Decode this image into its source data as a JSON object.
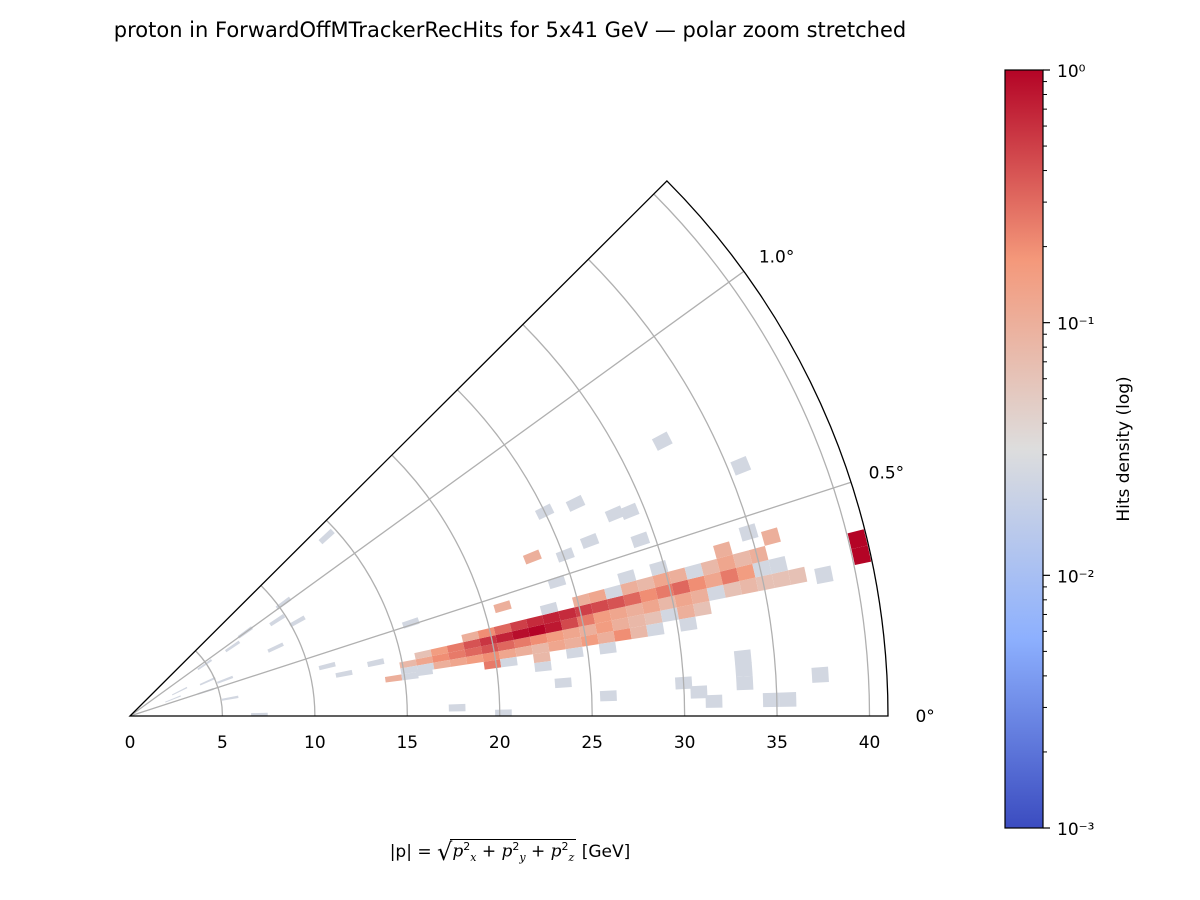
{
  "chart_data": {
    "type": "heatmap",
    "projection": "polar-wedge",
    "title": "proton in ForwardOffMTrackerRecHits for 5x41 GeV — polar zoom stretched",
    "xlabel": {
      "prefix": "|p| = ",
      "base": "p",
      "components": [
        "x",
        "y",
        "z"
      ],
      "exp": "2",
      "suffix": " [GeV]"
    },
    "r_range": [
      0,
      41
    ],
    "r_ticks": [
      "0",
      "5",
      "10",
      "15",
      "20",
      "25",
      "30",
      "35",
      "40"
    ],
    "theta_range_deg": [
      0,
      1.25
    ],
    "theta_ticks": [
      {
        "value": 0,
        "label": "0°"
      },
      {
        "value": 0.5,
        "label": "0.5°"
      },
      {
        "value": 1.0,
        "label": "1.0°"
      }
    ],
    "grid": true,
    "bin_size": {
      "r": 0.9,
      "theta": 0.035
    },
    "colorbar": {
      "label": "Hits density (log)",
      "scale": "log",
      "range": [
        0.001,
        1
      ],
      "colormap": "coolwarm",
      "tick_labels": [
        {
          "log": 0,
          "label": "10⁰"
        },
        {
          "log": -1,
          "label": "10⁻¹"
        },
        {
          "log": -2,
          "label": "10⁻²"
        },
        {
          "log": -3,
          "label": "10⁻³"
        }
      ]
    },
    "cells_format": [
      "r_GeV",
      "theta_deg",
      "log10_density"
    ],
    "cells": [
      [
        15.3,
        0.295,
        -1.1
      ],
      [
        16.2,
        0.295,
        -0.9
      ],
      [
        17.1,
        0.295,
        -0.7
      ],
      [
        18.0,
        0.295,
        -0.6
      ],
      [
        18.9,
        0.295,
        -0.5
      ],
      [
        19.8,
        0.295,
        -0.4
      ],
      [
        20.7,
        0.295,
        -0.5
      ],
      [
        21.6,
        0.295,
        -0.6
      ],
      [
        22.5,
        0.295,
        -0.7
      ],
      [
        23.4,
        0.295,
        -0.8
      ],
      [
        24.3,
        0.295,
        -0.9
      ],
      [
        25.2,
        0.295,
        -1.0
      ],
      [
        26.1,
        0.295,
        -0.8
      ],
      [
        27.0,
        0.295,
        -1.0
      ],
      [
        27.9,
        0.295,
        -1.1
      ],
      [
        28.8,
        0.295,
        -1.2
      ],
      [
        29.7,
        0.295,
        -1.6
      ],
      [
        30.6,
        0.295,
        -1.0
      ],
      [
        31.5,
        0.295,
        -1.2
      ],
      [
        16.2,
        0.33,
        -1.2
      ],
      [
        17.1,
        0.33,
        -0.8
      ],
      [
        18.0,
        0.33,
        -0.6
      ],
      [
        18.9,
        0.33,
        -0.4
      ],
      [
        19.8,
        0.33,
        -0.25
      ],
      [
        20.7,
        0.33,
        -0.15
      ],
      [
        21.6,
        0.33,
        -0.05
      ],
      [
        22.5,
        0.33,
        0
      ],
      [
        23.4,
        0.33,
        -0.1
      ],
      [
        24.3,
        0.33,
        -0.35
      ],
      [
        25.2,
        0.33,
        -0.6
      ],
      [
        26.1,
        0.33,
        -0.8
      ],
      [
        27.0,
        0.33,
        -0.9
      ],
      [
        27.9,
        0.33,
        -1.0
      ],
      [
        28.8,
        0.33,
        -0.9
      ],
      [
        29.7,
        0.33,
        -1.1
      ],
      [
        30.6,
        0.33,
        -0.9
      ],
      [
        31.5,
        0.33,
        -1.0
      ],
      [
        32.4,
        0.33,
        -1.6
      ],
      [
        33.3,
        0.33,
        -1.2
      ],
      [
        34.2,
        0.33,
        -1.1
      ],
      [
        35.1,
        0.33,
        -1.2
      ],
      [
        36.0,
        0.33,
        -1.2
      ],
      [
        36.9,
        0.33,
        -1.2
      ],
      [
        18.9,
        0.365,
        -1.0
      ],
      [
        19.8,
        0.365,
        -0.7
      ],
      [
        20.7,
        0.365,
        -0.5
      ],
      [
        21.6,
        0.365,
        -0.3
      ],
      [
        22.5,
        0.365,
        -0.2
      ],
      [
        23.4,
        0.365,
        -0.15
      ],
      [
        24.3,
        0.365,
        -0.2
      ],
      [
        25.2,
        0.365,
        -0.3
      ],
      [
        26.1,
        0.365,
        -0.35
      ],
      [
        27.0,
        0.365,
        -0.4
      ],
      [
        27.9,
        0.365,
        -0.5
      ],
      [
        28.8,
        0.365,
        -0.7
      ],
      [
        29.7,
        0.365,
        -0.6
      ],
      [
        30.6,
        0.365,
        -0.5
      ],
      [
        31.5,
        0.365,
        -0.7
      ],
      [
        32.4,
        0.365,
        -0.9
      ],
      [
        33.3,
        0.365,
        -0.6
      ],
      [
        34.2,
        0.365,
        -0.8
      ],
      [
        35.1,
        0.365,
        -1.6
      ],
      [
        36.0,
        0.365,
        -1.6
      ],
      [
        15.3,
        0.26,
        -1.6
      ],
      [
        16.2,
        0.26,
        -1.6
      ],
      [
        17.1,
        0.26,
        -1.0
      ],
      [
        18.0,
        0.26,
        -0.9
      ],
      [
        18.9,
        0.26,
        -0.8
      ],
      [
        19.8,
        0.26,
        -0.7
      ],
      [
        20.7,
        0.26,
        -0.9
      ],
      [
        21.6,
        0.26,
        -1.0
      ],
      [
        22.5,
        0.26,
        -1.1
      ],
      [
        23.4,
        0.26,
        -0.9
      ],
      [
        24.3,
        0.26,
        -1.0
      ],
      [
        25.2,
        0.26,
        -0.8
      ],
      [
        26.1,
        0.26,
        -1.0
      ],
      [
        27.0,
        0.26,
        -0.7
      ],
      [
        27.9,
        0.26,
        -1.1
      ],
      [
        28.8,
        0.26,
        -1.6
      ],
      [
        30.6,
        0.26,
        -1.6
      ],
      [
        23.4,
        0.4,
        -1.6
      ],
      [
        25.2,
        0.4,
        -1.0
      ],
      [
        26.1,
        0.4,
        -0.9
      ],
      [
        27.0,
        0.4,
        -1.6
      ],
      [
        27.9,
        0.4,
        -1.0
      ],
      [
        28.8,
        0.4,
        -1.1
      ],
      [
        29.7,
        0.4,
        -0.9
      ],
      [
        30.6,
        0.4,
        -1.0
      ],
      [
        31.5,
        0.4,
        -1.6
      ],
      [
        32.4,
        0.4,
        -1.1
      ],
      [
        33.3,
        0.4,
        -0.9
      ],
      [
        34.2,
        0.4,
        -1.1
      ],
      [
        35.1,
        0.4,
        -1.0
      ],
      [
        14.4,
        0.225,
        -1.0
      ],
      [
        15.3,
        0.225,
        -1.6
      ],
      [
        19.8,
        0.225,
        -0.6
      ],
      [
        20.7,
        0.225,
        -1.6
      ],
      [
        22.5,
        0.225,
        -1.1
      ],
      [
        24.3,
        0.225,
        -1.6
      ],
      [
        26.1,
        0.225,
        -1.6
      ],
      [
        27.9,
        0.435,
        -1.6
      ],
      [
        29.7,
        0.435,
        -1.6
      ],
      [
        33.3,
        0.435,
        -1.0
      ],
      [
        36.0,
        0.435,
        -1.0
      ],
      [
        40.5,
        0.345,
        0
      ],
      [
        40.5,
        0.38,
        0
      ],
      [
        32.4,
        0.76,
        -1.6
      ],
      [
        35.7,
        0.62,
        -1.6
      ],
      [
        26.7,
        0.71,
        -1.6
      ],
      [
        25.0,
        0.73,
        -1.6
      ],
      [
        28.4,
        0.63,
        -1.6
      ],
      [
        29.2,
        0.62,
        -1.6
      ],
      [
        26.6,
        0.58,
        -1.6
      ],
      [
        29.2,
        0.53,
        -1.6
      ],
      [
        25.1,
        0.565,
        -1.6
      ],
      [
        34.9,
        0.46,
        -1.6
      ],
      [
        23.4,
        0.6,
        -1.0
      ],
      [
        21.0,
        0.455,
        -1.0
      ],
      [
        24.2,
        0.485,
        -1.6
      ],
      [
        16.0,
        0.51,
        -1.6
      ],
      [
        38.3,
        0.32,
        -1.6
      ],
      [
        33.3,
        0.153,
        -1.6
      ],
      [
        33.3,
        0.085,
        -1.6
      ],
      [
        33.3,
        0.12,
        -1.6
      ],
      [
        37.4,
        0.095,
        -1.6
      ],
      [
        35.6,
        0.04,
        -1.6
      ],
      [
        34.7,
        0.04,
        -1.6
      ],
      [
        31.6,
        0.04,
        -1.6
      ],
      [
        30.8,
        0.067,
        -1.6
      ],
      [
        30.0,
        0.095,
        -1.6
      ],
      [
        25.9,
        0.067,
        -1.6
      ],
      [
        23.5,
        0.122,
        -1.6
      ],
      [
        22.5,
        0.19,
        -1.6
      ],
      [
        20.2,
        0.01,
        -1.6
      ],
      [
        17.7,
        0.04,
        -1.6
      ],
      [
        16.1,
        0.237,
        -1.6
      ],
      [
        13.6,
        0.34,
        -1.6
      ],
      [
        11.8,
        0.31,
        -1.6
      ],
      [
        11.0,
        0.395,
        -1.6
      ],
      [
        14.4,
        1.18,
        -1.6
      ],
      [
        10.3,
        1.01,
        -1.6
      ],
      [
        9.5,
        0.92,
        -1.6
      ],
      [
        10.4,
        0.82,
        -1.6
      ],
      [
        8.7,
        0.7,
        -1.6
      ],
      [
        7.7,
        1.0,
        -1.6
      ],
      [
        6.7,
        0.95,
        -1.6
      ],
      [
        5.5,
        0.58,
        -1.6
      ],
      [
        4.6,
        0.67,
        -1.6
      ],
      [
        4.3,
        0.5,
        -1.6
      ],
      [
        3.0,
        0.74,
        -1.6
      ],
      [
        5.5,
        0.28,
        -1.6
      ],
      [
        7.0,
        0.02,
        -1.6
      ],
      [
        4.9,
        0.96,
        -1.6
      ],
      [
        2.5,
        0.6,
        -1.6
      ]
    ]
  },
  "colors": {
    "grid": "#b0b0b0",
    "frame": "#000000",
    "cmap_stops": [
      "#3b4cc0",
      "#8db0fe",
      "#dddddd",
      "#f4987a",
      "#b40426"
    ]
  }
}
